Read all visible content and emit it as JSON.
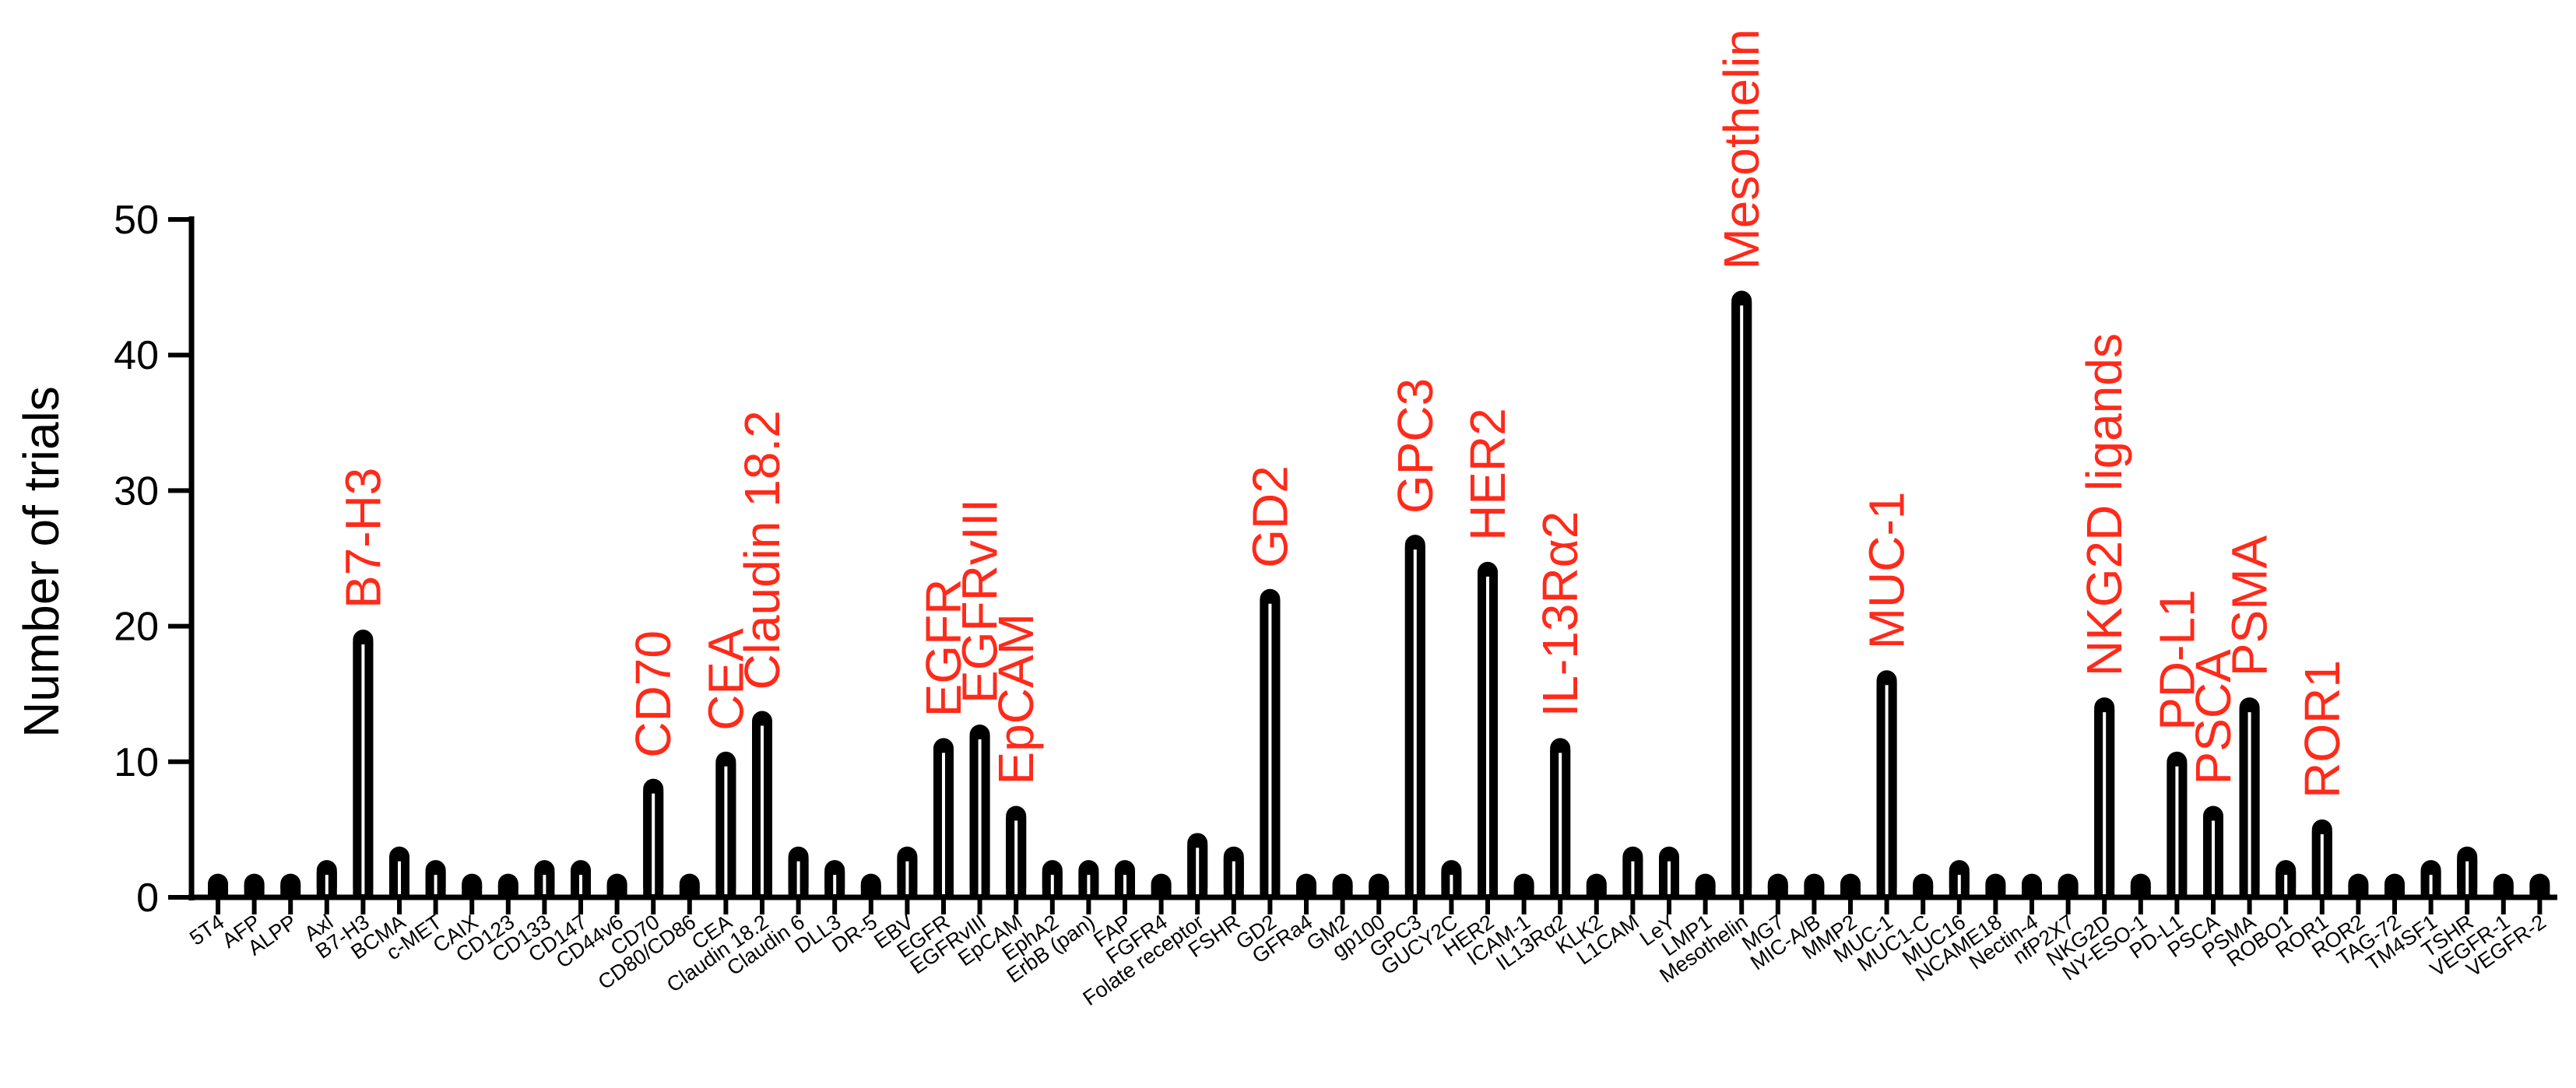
{
  "chart_data": {
    "type": "bar",
    "title": "",
    "xlabel": "",
    "ylabel": "Number of trials",
    "ylim": [
      0,
      50
    ],
    "yticks": [
      0,
      10,
      20,
      30,
      40,
      50
    ],
    "grid": false,
    "bar_color": "#000000",
    "annotation_color": "#ff2a1a",
    "categories": [
      "5T4",
      "AFP",
      "ALPP",
      "Axl",
      "B7-H3",
      "BCMA",
      "c-MET",
      "CAIX",
      "CD123",
      "CD133",
      "CD147",
      "CD44v6",
      "CD70",
      "CD80/CD86",
      "CEA",
      "Claudin 18.2",
      "Claudin 6",
      "DLL3",
      "DR-5",
      "EBV",
      "EGFR",
      "EGFRvIII",
      "EpCAM",
      "EphA2",
      "ErbB (pan)",
      "FAP",
      "FGFR4",
      "Folate receptor",
      "FSHR",
      "GD2",
      "GFRa4",
      "GM2",
      "gp100",
      "GPC3",
      "GUCY2C",
      "HER2",
      "ICAM-1",
      "IL13Rα2",
      "KLK2",
      "L1CAM",
      "LeY",
      "LMP1",
      "Mesothelin",
      "MG7",
      "MIC-A/B",
      "MMP2",
      "MUC-1",
      "MUC1-C",
      "MUC16",
      "NCAME18",
      "Nectin-4",
      "nfP2X7",
      "NKG2D",
      "NY-ESO-1",
      "PD-L1",
      "PSCA",
      "PSMA",
      "ROBO1",
      "ROR1",
      "ROR2",
      "TAG-72",
      "TM4SF1",
      "TSHR",
      "VEGFR-1",
      "VEGFR-2"
    ],
    "values": [
      1,
      1,
      1,
      2,
      19,
      3,
      2,
      1,
      1,
      2,
      2,
      1,
      8,
      1,
      10,
      13,
      3,
      2,
      1,
      3,
      11,
      12,
      6,
      2,
      2,
      2,
      1,
      4,
      3,
      22,
      1,
      1,
      1,
      26,
      2,
      24,
      1,
      11,
      1,
      3,
      3,
      1,
      44,
      1,
      1,
      1,
      16,
      1,
      2,
      1,
      1,
      1,
      14,
      1,
      10,
      6,
      14,
      2,
      5,
      1,
      1,
      2,
      3,
      1,
      1
    ],
    "annotations": [
      {
        "label": "B7-H3",
        "category": "B7-H3"
      },
      {
        "label": "CD70",
        "category": "CD70"
      },
      {
        "label": "CEA",
        "category": "CEA"
      },
      {
        "label": "Claudin 18.2",
        "category": "Claudin 18.2"
      },
      {
        "label": "EGFR",
        "category": "EGFR"
      },
      {
        "label": "EGFRvIII",
        "category": "EGFRvIII"
      },
      {
        "label": "EpCAM",
        "category": "EpCAM"
      },
      {
        "label": "GD2",
        "category": "GD2"
      },
      {
        "label": "GPC3",
        "category": "GPC3"
      },
      {
        "label": "HER2",
        "category": "HER2"
      },
      {
        "label": "IL-13Rα2",
        "category": "IL13Rα2"
      },
      {
        "label": "Mesothelin",
        "category": "Mesothelin"
      },
      {
        "label": "MUC-1",
        "category": "MUC-1"
      },
      {
        "label": "NKG2D ligands",
        "category": "NKG2D"
      },
      {
        "label": "PD-L1",
        "category": "PD-L1"
      },
      {
        "label": "PSCA",
        "category": "PSCA"
      },
      {
        "label": "PSMA",
        "category": "PSMA"
      },
      {
        "label": "ROR1",
        "category": "ROR1"
      }
    ]
  }
}
